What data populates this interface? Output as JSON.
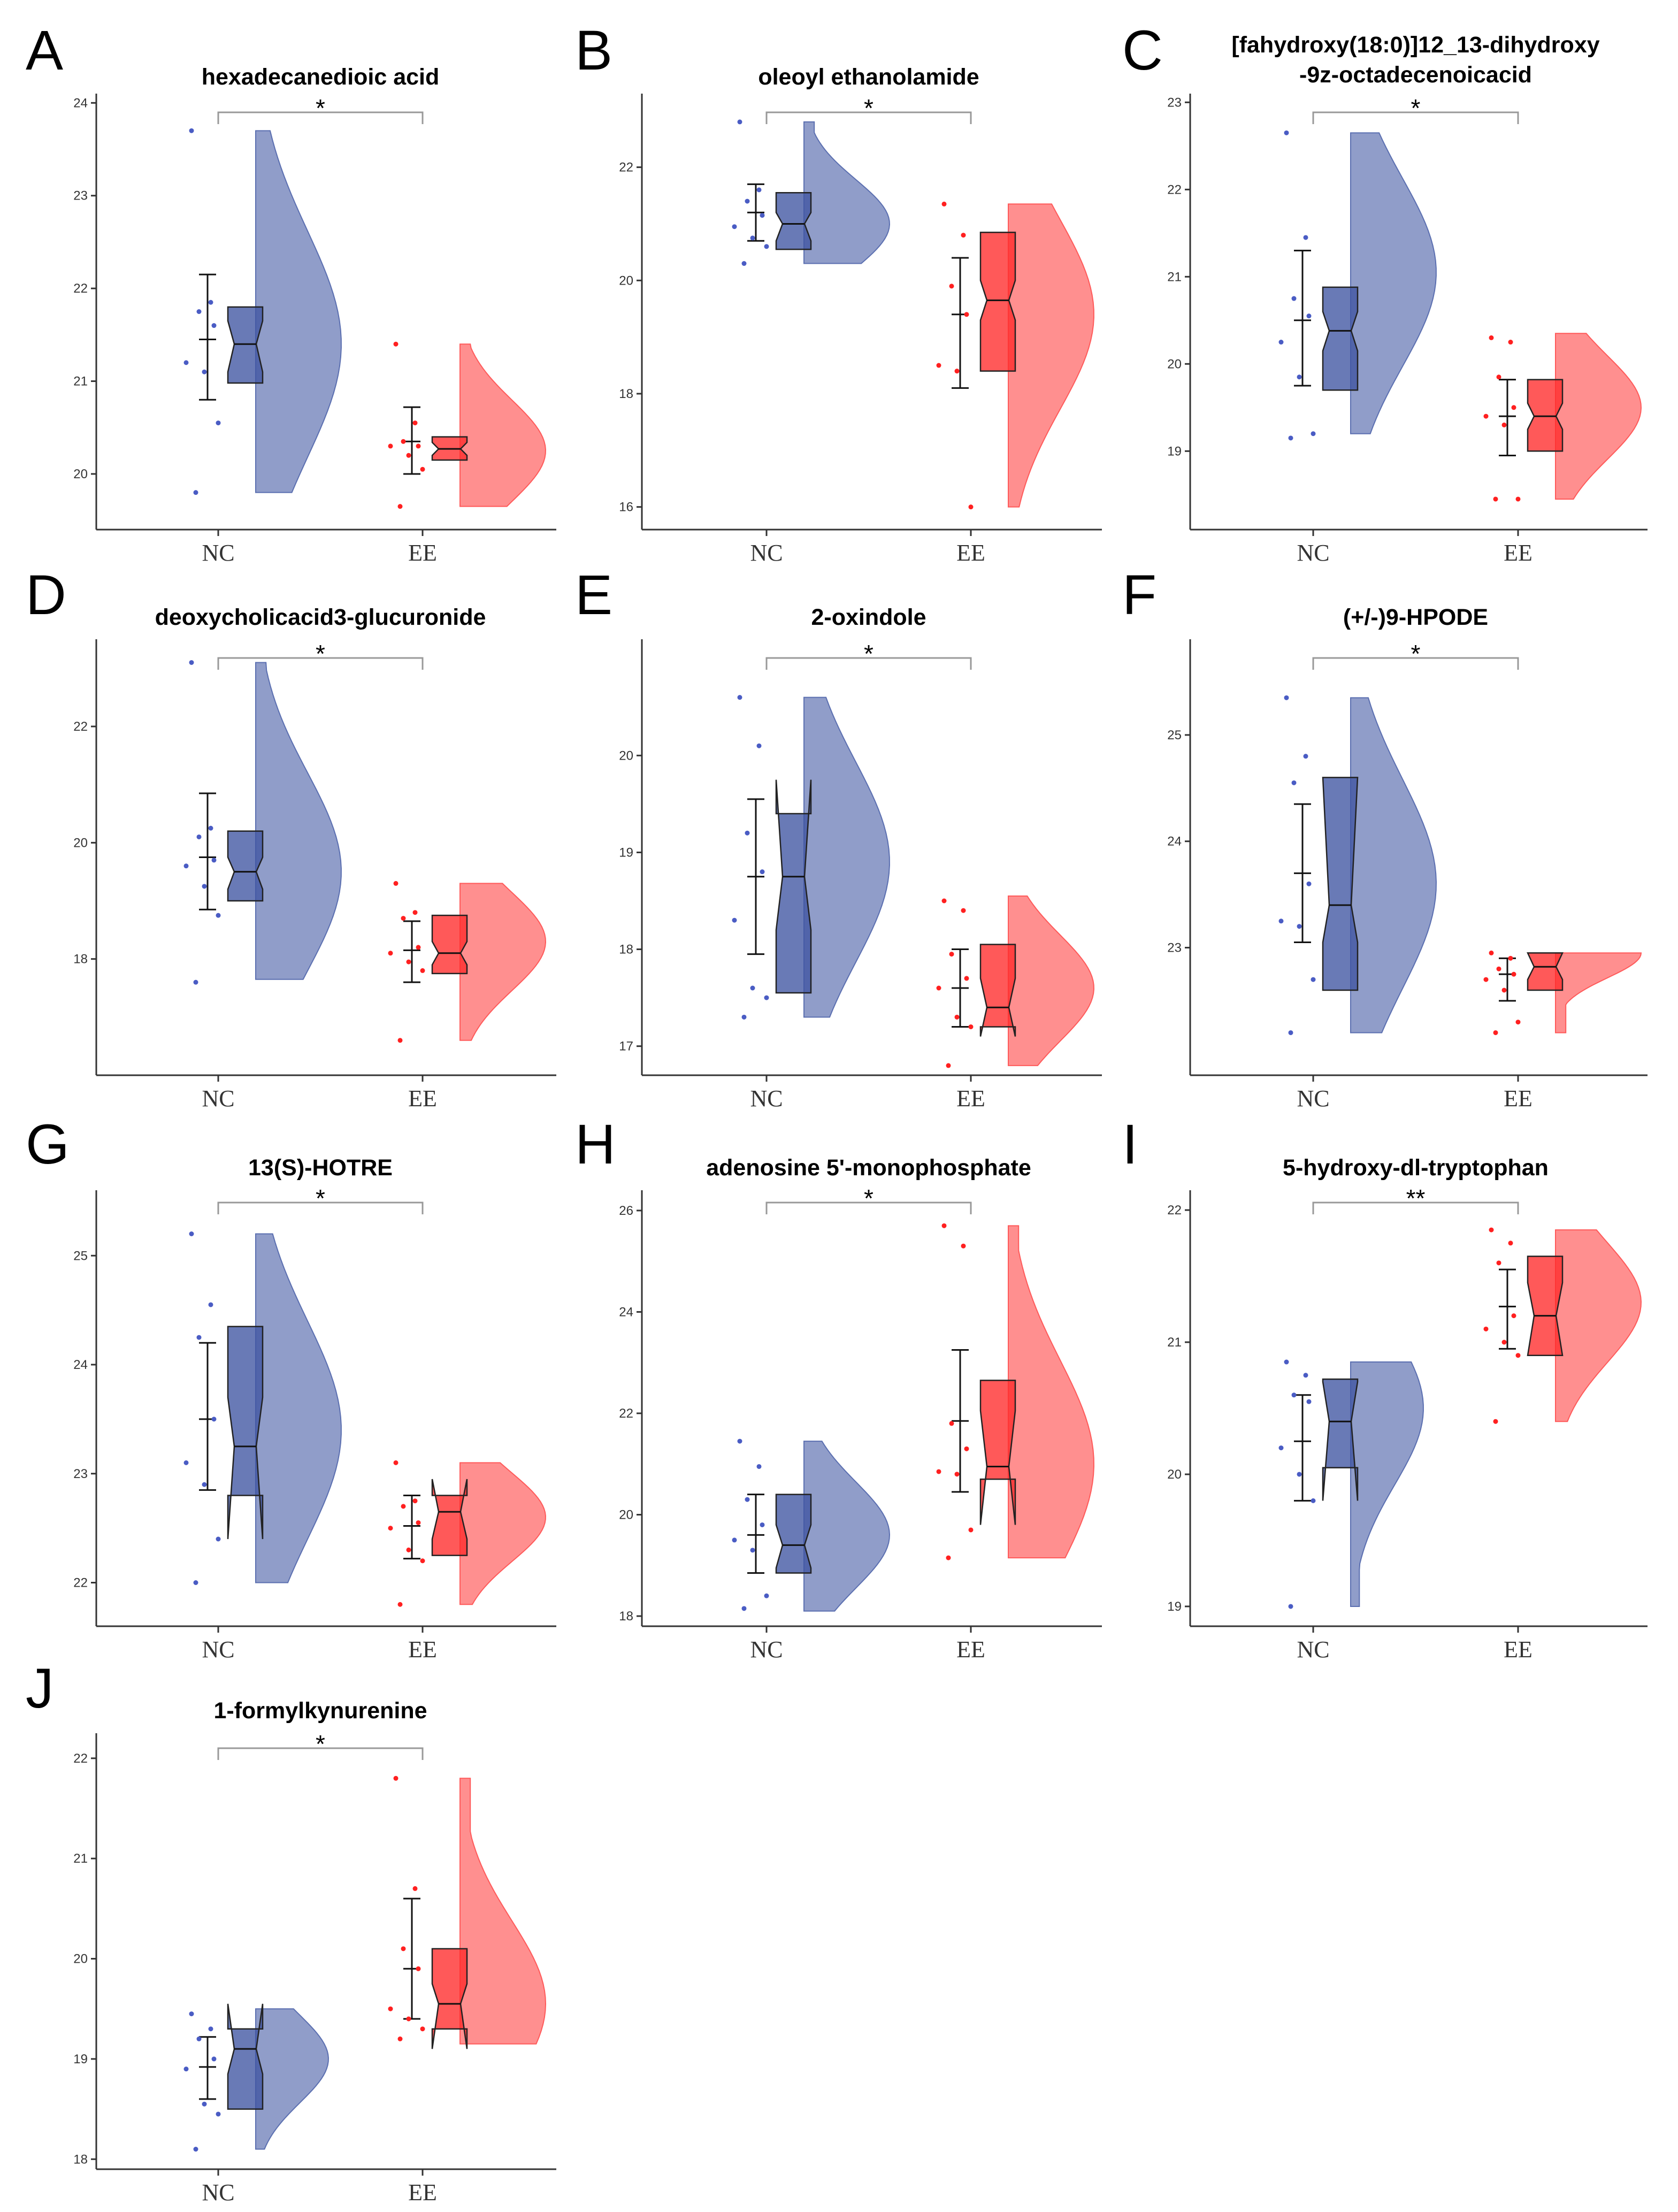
{
  "chart_data": [
    {
      "panel": "A",
      "type": "raincloud",
      "title": [
        "hexadecanedioic acid"
      ],
      "categories": [
        "NC",
        "EE"
      ],
      "ylim": [
        19.4,
        24.1
      ],
      "yticks": [
        20,
        21,
        22,
        23,
        24
      ],
      "significance": "*",
      "groups": [
        {
          "name": "NC",
          "color": "#5b6fb0",
          "points": [
            23.7,
            21.85,
            21.75,
            21.6,
            21.2,
            21.1,
            20.55,
            19.8
          ],
          "mean": 21.45,
          "err_low": 20.8,
          "err_high": 22.15,
          "box": {
            "q1": 20.98,
            "median": 21.4,
            "q3": 21.8,
            "notch_low": 21.1,
            "notch_high": 21.65
          },
          "violin": {
            "min": 19.8,
            "max": 23.7,
            "mode": 21.4,
            "width": 1.0
          }
        },
        {
          "name": "EE",
          "color": "#ff5a5a",
          "points": [
            21.4,
            20.55,
            20.35,
            20.3,
            20.3,
            20.2,
            20.05,
            19.65
          ],
          "mean": 20.35,
          "err_low": 20.0,
          "err_high": 20.72,
          "box": {
            "q1": 20.15,
            "median": 20.27,
            "q3": 20.4,
            "notch_low": 20.2,
            "notch_high": 20.34
          },
          "violin": {
            "min": 19.65,
            "max": 21.4,
            "mode": 20.25,
            "width": 1.0
          }
        }
      ]
    },
    {
      "panel": "B",
      "type": "raincloud",
      "title": [
        "oleoyl ethanolamide"
      ],
      "categories": [
        "NC",
        "EE"
      ],
      "ylim": [
        15.6,
        23.3
      ],
      "yticks": [
        16,
        18,
        20,
        22
      ],
      "significance": "*",
      "groups": [
        {
          "name": "NC",
          "color": "#5b6fb0",
          "points": [
            22.8,
            21.6,
            21.4,
            21.15,
            20.95,
            20.75,
            20.6,
            20.3
          ],
          "mean": 21.2,
          "err_low": 20.7,
          "err_high": 21.7,
          "box": {
            "q1": 20.55,
            "median": 21.0,
            "q3": 21.55,
            "notch_low": 20.7,
            "notch_high": 21.2
          },
          "violin": {
            "min": 20.3,
            "max": 22.8,
            "mode": 21.0,
            "width": 1.0
          }
        },
        {
          "name": "EE",
          "color": "#ff5a5a",
          "points": [
            21.35,
            20.8,
            19.9,
            19.4,
            18.5,
            18.4,
            16.0
          ],
          "mean": 19.4,
          "err_low": 18.1,
          "err_high": 20.4,
          "box": {
            "q1": 18.4,
            "median": 19.65,
            "q3": 20.85,
            "notch_low": 19.3,
            "notch_high": 20.0
          },
          "violin": {
            "min": 16.0,
            "max": 21.35,
            "mode": 19.4,
            "width": 1.0
          }
        }
      ]
    },
    {
      "panel": "C",
      "type": "raincloud",
      "title": [
        "[fahydroxy(18:0)]12_13-dihydroxy",
        "-9z-octadecenoicacid"
      ],
      "categories": [
        "NC",
        "EE"
      ],
      "ylim": [
        18.1,
        23.1
      ],
      "yticks": [
        19,
        20,
        21,
        22,
        23
      ],
      "significance": "*",
      "groups": [
        {
          "name": "NC",
          "color": "#5b6fb0",
          "points": [
            22.65,
            21.45,
            20.75,
            20.55,
            20.25,
            19.85,
            19.2,
            19.15
          ],
          "mean": 20.5,
          "err_low": 19.75,
          "err_high": 21.3,
          "box": {
            "q1": 19.7,
            "median": 20.38,
            "q3": 20.88,
            "notch_low": 20.15,
            "notch_high": 20.6
          },
          "violin": {
            "min": 19.2,
            "max": 22.65,
            "mode": 21.05,
            "width": 1.0
          }
        },
        {
          "name": "EE",
          "color": "#ff5a5a",
          "points": [
            20.3,
            20.25,
            19.85,
            19.5,
            19.4,
            19.3,
            18.45,
            18.45
          ],
          "mean": 19.4,
          "err_low": 18.95,
          "err_high": 19.82,
          "box": {
            "q1": 19.0,
            "median": 19.4,
            "q3": 19.82,
            "notch_low": 19.25,
            "notch_high": 19.55
          },
          "violin": {
            "min": 18.45,
            "max": 20.35,
            "mode": 19.5,
            "width": 1.0
          }
        }
      ]
    },
    {
      "panel": "D",
      "type": "raincloud",
      "title": [
        "deoxycholicacid3-glucuronide"
      ],
      "categories": [
        "NC",
        "EE"
      ],
      "ylim": [
        16.0,
        23.5
      ],
      "yticks": [
        18,
        20,
        22
      ],
      "significance": "*",
      "groups": [
        {
          "name": "NC",
          "color": "#5b6fb0",
          "points": [
            23.1,
            20.25,
            20.1,
            19.7,
            19.6,
            19.25,
            18.75,
            17.6
          ],
          "mean": 19.75,
          "err_low": 18.85,
          "err_high": 20.85,
          "box": {
            "q1": 19.0,
            "median": 19.5,
            "q3": 20.2,
            "notch_low": 19.2,
            "notch_high": 19.75
          },
          "violin": {
            "min": 17.65,
            "max": 23.1,
            "mode": 19.5,
            "width": 1.0
          }
        },
        {
          "name": "EE",
          "color": "#ff5a5a",
          "points": [
            19.3,
            18.8,
            18.7,
            18.2,
            18.1,
            17.95,
            17.8,
            16.6
          ],
          "mean": 18.15,
          "err_low": 17.6,
          "err_high": 18.65,
          "box": {
            "q1": 17.75,
            "median": 18.1,
            "q3": 18.75,
            "notch_low": 17.9,
            "notch_high": 18.3
          },
          "violin": {
            "min": 16.6,
            "max": 19.3,
            "mode": 18.3,
            "width": 1.0
          }
        }
      ]
    },
    {
      "panel": "E",
      "type": "raincloud",
      "title": [
        "2-oxindole"
      ],
      "categories": [
        "NC",
        "EE"
      ],
      "ylim": [
        16.7,
        21.2
      ],
      "yticks": [
        17,
        18,
        19,
        20
      ],
      "significance": "*",
      "groups": [
        {
          "name": "NC",
          "color": "#5b6fb0",
          "points": [
            20.6,
            20.1,
            19.2,
            18.8,
            18.3,
            17.6,
            17.5,
            17.3
          ],
          "mean": 18.75,
          "err_low": 17.95,
          "err_high": 19.55,
          "box": {
            "q1": 17.55,
            "median": 18.75,
            "q3": 19.4,
            "notch_low": 18.2,
            "notch_high": 19.75
          },
          "violin": {
            "min": 17.3,
            "max": 20.6,
            "mode": 18.9,
            "width": 1.0
          }
        },
        {
          "name": "EE",
          "color": "#ff5a5a",
          "points": [
            18.5,
            18.4,
            17.95,
            17.7,
            17.6,
            17.3,
            17.2,
            16.8
          ],
          "mean": 17.6,
          "err_low": 17.2,
          "err_high": 18.0,
          "box": {
            "q1": 17.2,
            "median": 17.4,
            "q3": 18.05,
            "notch_low": 17.1,
            "notch_high": 17.7
          },
          "violin": {
            "min": 16.8,
            "max": 18.55,
            "mode": 17.6,
            "width": 1.0
          }
        }
      ]
    },
    {
      "panel": "F",
      "type": "raincloud",
      "title": [
        "(+/-)9-HPODE"
      ],
      "categories": [
        "NC",
        "EE"
      ],
      "ylim": [
        21.8,
        25.9
      ],
      "yticks": [
        23,
        24,
        25
      ],
      "significance": "*",
      "groups": [
        {
          "name": "NC",
          "color": "#5b6fb0",
          "points": [
            25.35,
            24.8,
            24.55,
            23.6,
            23.25,
            23.2,
            22.7,
            22.2
          ],
          "mean": 23.7,
          "err_low": 23.05,
          "err_high": 24.35,
          "box": {
            "q1": 22.6,
            "median": 23.4,
            "q3": 24.6,
            "notch_low": 23.05,
            "notch_high": 24.6
          },
          "violin": {
            "min": 22.2,
            "max": 25.35,
            "mode": 23.6,
            "width": 1.0
          }
        },
        {
          "name": "EE",
          "color": "#ff5a5a",
          "points": [
            22.95,
            22.9,
            22.8,
            22.75,
            22.7,
            22.6,
            22.3,
            22.2
          ],
          "mean": 22.75,
          "err_low": 22.5,
          "err_high": 22.9,
          "box": {
            "q1": 22.6,
            "median": 22.82,
            "q3": 22.95,
            "notch_low": 22.7,
            "notch_high": 22.95
          },
          "violin": {
            "min": 22.2,
            "max": 22.95,
            "mode": 22.95,
            "width": 1.0
          }
        }
      ]
    },
    {
      "panel": "G",
      "type": "raincloud",
      "title": [
        "13(S)-HOTRE"
      ],
      "categories": [
        "NC",
        "EE"
      ],
      "ylim": [
        21.6,
        25.6
      ],
      "yticks": [
        22,
        23,
        24,
        25
      ],
      "significance": "*",
      "groups": [
        {
          "name": "NC",
          "color": "#5b6fb0",
          "points": [
            25.2,
            24.55,
            24.25,
            23.5,
            23.1,
            22.9,
            22.4,
            22.0
          ],
          "mean": 23.5,
          "err_low": 22.85,
          "err_high": 24.2,
          "box": {
            "q1": 22.8,
            "median": 23.25,
            "q3": 24.35,
            "notch_low": 22.4,
            "notch_high": 23.7
          },
          "violin": {
            "min": 22.0,
            "max": 25.2,
            "mode": 23.4,
            "width": 1.0
          }
        },
        {
          "name": "EE",
          "color": "#ff5a5a",
          "points": [
            23.1,
            22.75,
            22.7,
            22.55,
            22.5,
            22.3,
            22.2,
            21.8
          ],
          "mean": 22.52,
          "err_low": 22.22,
          "err_high": 22.8,
          "box": {
            "q1": 22.25,
            "median": 22.65,
            "q3": 22.8,
            "notch_low": 22.4,
            "notch_high": 22.95
          },
          "violin": {
            "min": 21.8,
            "max": 23.1,
            "mode": 22.6,
            "width": 1.0
          }
        }
      ]
    },
    {
      "panel": "H",
      "type": "raincloud",
      "title": [
        "adenosine 5'-monophosphate"
      ],
      "categories": [
        "NC",
        "EE"
      ],
      "ylim": [
        17.8,
        26.4
      ],
      "yticks": [
        18,
        20,
        22,
        24,
        26
      ],
      "significance": "*",
      "groups": [
        {
          "name": "NC",
          "color": "#5b6fb0",
          "points": [
            21.45,
            20.95,
            20.3,
            19.8,
            19.5,
            19.3,
            18.4,
            18.15
          ],
          "mean": 19.6,
          "err_low": 18.85,
          "err_high": 20.4,
          "box": {
            "q1": 18.85,
            "median": 19.4,
            "q3": 20.4,
            "notch_low": 18.95,
            "notch_high": 19.8
          },
          "violin": {
            "min": 18.1,
            "max": 21.45,
            "mode": 19.6,
            "width": 1.0
          }
        },
        {
          "name": "EE",
          "color": "#ff5a5a",
          "points": [
            25.7,
            25.3,
            21.8,
            21.3,
            20.85,
            20.8,
            19.7,
            19.15
          ],
          "mean": 21.85,
          "err_low": 20.45,
          "err_high": 23.25,
          "box": {
            "q1": 20.7,
            "median": 20.95,
            "q3": 22.65,
            "notch_low": 19.8,
            "notch_high": 22.05
          },
          "violin": {
            "min": 19.15,
            "max": 25.7,
            "mode": 21.0,
            "width": 1.0
          }
        }
      ]
    },
    {
      "panel": "I",
      "type": "raincloud",
      "title": [
        "5-hydroxy-dl-tryptophan"
      ],
      "categories": [
        "NC",
        "EE"
      ],
      "ylim": [
        18.85,
        22.15
      ],
      "yticks": [
        19,
        20,
        21,
        22
      ],
      "significance": "**",
      "groups": [
        {
          "name": "NC",
          "color": "#5b6fb0",
          "points": [
            20.85,
            20.75,
            20.6,
            20.55,
            20.2,
            20.0,
            19.8,
            19.0
          ],
          "mean": 20.25,
          "err_low": 19.8,
          "err_high": 20.6,
          "box": {
            "q1": 20.05,
            "median": 20.4,
            "q3": 20.72,
            "notch_low": 19.8,
            "notch_high": 20.7
          },
          "violin": {
            "min": 19.0,
            "max": 20.85,
            "mode": 20.5,
            "width": 0.85
          }
        },
        {
          "name": "EE",
          "color": "#ff5a5a",
          "points": [
            21.85,
            21.75,
            21.6,
            21.2,
            21.1,
            21.0,
            20.9,
            20.4
          ],
          "mean": 21.27,
          "err_low": 20.95,
          "err_high": 21.55,
          "box": {
            "q1": 20.9,
            "median": 21.2,
            "q3": 21.65,
            "notch_low": 20.9,
            "notch_high": 21.45
          },
          "violin": {
            "min": 20.4,
            "max": 21.85,
            "mode": 21.3,
            "width": 1.0
          }
        }
      ]
    },
    {
      "panel": "J",
      "type": "raincloud",
      "title": [
        "1-formylkynurenine"
      ],
      "categories": [
        "NC",
        "EE"
      ],
      "ylim": [
        17.9,
        22.25
      ],
      "yticks": [
        18,
        19,
        20,
        21,
        22
      ],
      "significance": "*",
      "groups": [
        {
          "name": "NC",
          "color": "#5b6fb0",
          "points": [
            19.45,
            19.3,
            19.2,
            19.0,
            18.9,
            18.55,
            18.45,
            18.1
          ],
          "mean": 18.92,
          "err_low": 18.6,
          "err_high": 19.22,
          "box": {
            "q1": 18.5,
            "median": 19.1,
            "q3": 19.3,
            "notch_low": 18.85,
            "notch_high": 19.55
          },
          "violin": {
            "min": 18.1,
            "max": 19.5,
            "mode": 19.0,
            "width": 0.85
          }
        },
        {
          "name": "EE",
          "color": "#ff5a5a",
          "points": [
            21.8,
            20.7,
            20.1,
            19.9,
            19.5,
            19.4,
            19.3,
            19.2
          ],
          "mean": 19.9,
          "err_low": 19.4,
          "err_high": 20.6,
          "box": {
            "q1": 19.3,
            "median": 19.55,
            "q3": 20.1,
            "notch_low": 19.1,
            "notch_high": 19.75
          },
          "violin": {
            "min": 19.15,
            "max": 21.8,
            "mode": 19.55,
            "width": 1.0
          }
        }
      ]
    }
  ]
}
